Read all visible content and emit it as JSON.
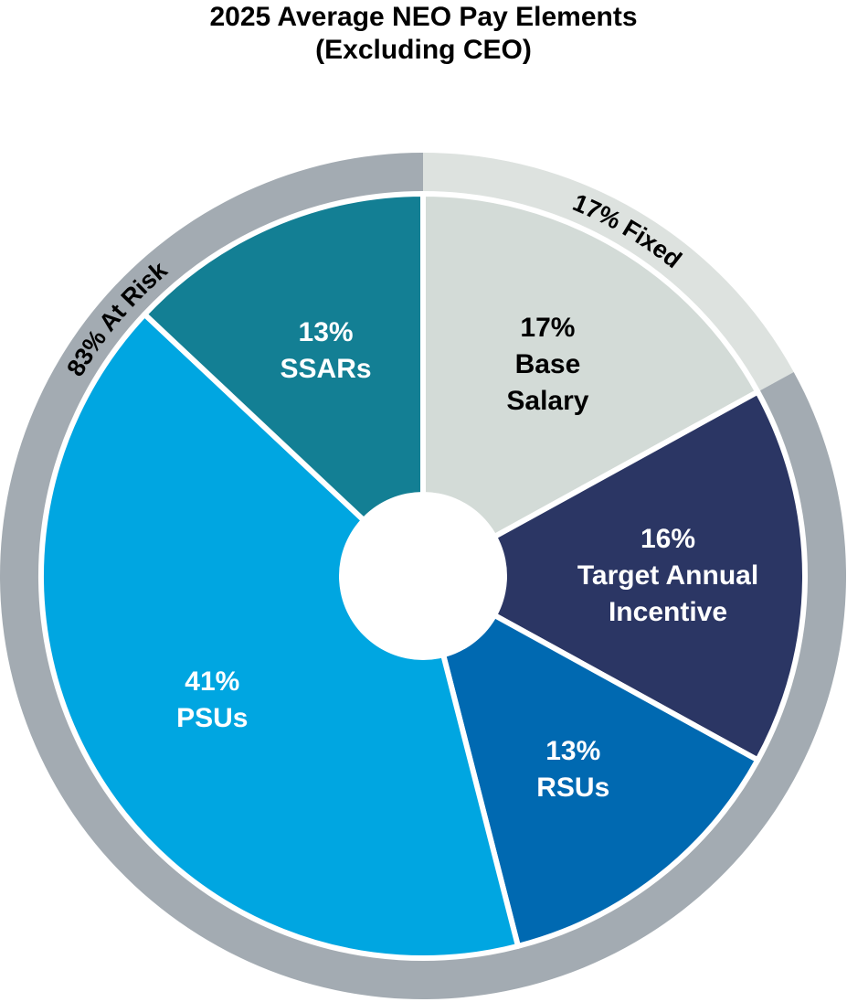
{
  "chart_data": {
    "type": "pie",
    "title": "2025 Average NEO Pay Elements",
    "subtitle": "(Excluding CEO)",
    "categories": [
      "Base Salary",
      "Target Annual Incentive",
      "RSUs",
      "PSUs",
      "SSARs"
    ],
    "values": [
      17,
      16,
      13,
      41,
      13
    ],
    "value_labels": [
      "17%",
      "16%",
      "13%",
      "41%",
      "13%"
    ],
    "colors": [
      "#d3dbd7",
      "#2b3664",
      "#0069b1",
      "#00a6e1",
      "#137f94"
    ],
    "ring": {
      "values": [
        17,
        83
      ],
      "value_labels": [
        "17% Fixed",
        "83% At Risk"
      ],
      "colors": [
        "#dde2df",
        "#a3abb2"
      ]
    }
  }
}
